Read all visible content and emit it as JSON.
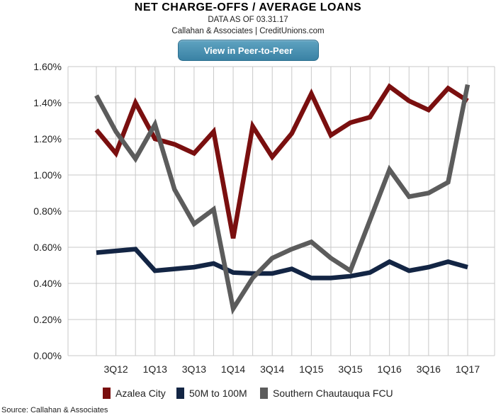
{
  "header": {
    "title": "NET CHARGE-OFFS / AVERAGE LOANS",
    "data_as_of": "DATA AS OF 03.31.17",
    "attribution": "Callahan & Associates | CreditUnions.com",
    "peer_button_label": "View in Peer-to-Peer"
  },
  "footer": {
    "source": "Source: Callahan & Associates"
  },
  "chart_data": {
    "type": "line",
    "title": "NET CHARGE-OFFS / AVERAGE LOANS",
    "xlabel": "",
    "ylabel": "",
    "ylim": [
      0,
      0.016
    ],
    "y_ticks": [
      "0.00%",
      "0.20%",
      "0.40%",
      "0.60%",
      "0.80%",
      "1.00%",
      "1.20%",
      "1.40%",
      "1.60%"
    ],
    "x_tick_labels": [
      "3Q12",
      "1Q13",
      "3Q13",
      "1Q14",
      "3Q14",
      "1Q15",
      "3Q15",
      "1Q16",
      "3Q16",
      "1Q17"
    ],
    "grid": true,
    "legend_placement": "bottom",
    "categories": [
      "2Q12",
      "3Q12",
      "4Q12",
      "1Q13",
      "2Q13",
      "3Q13",
      "4Q13",
      "1Q14",
      "2Q14",
      "3Q14",
      "4Q14",
      "1Q15",
      "2Q15",
      "3Q15",
      "4Q15",
      "1Q16",
      "2Q16",
      "3Q16",
      "4Q16",
      "1Q17"
    ],
    "series": [
      {
        "name": "Azalea City",
        "color": "#7a0f0f",
        "values": [
          0.0125,
          0.0112,
          0.014,
          0.012,
          0.0117,
          0.0112,
          0.0124,
          0.0065,
          0.0127,
          0.011,
          0.0123,
          0.0145,
          0.0122,
          0.0129,
          0.0132,
          0.0149,
          0.0141,
          0.0136,
          0.0148,
          0.0141
        ]
      },
      {
        "name": "50M to 100M",
        "color": "#132544",
        "values": [
          0.0057,
          0.0058,
          0.0059,
          0.0047,
          0.0048,
          0.0049,
          0.0051,
          0.0046,
          0.00455,
          0.00455,
          0.0048,
          0.0043,
          0.0043,
          0.0044,
          0.0046,
          0.0052,
          0.0047,
          0.0049,
          0.0052,
          0.0049
        ]
      },
      {
        "name": "Southern Chautauqua FCU",
        "color": "#5c5c5c",
        "values": [
          0.0144,
          0.0124,
          0.0109,
          0.0128,
          0.0092,
          0.0073,
          0.0081,
          0.0026,
          0.0043,
          0.0054,
          0.0059,
          0.0063,
          0.0054,
          0.0047,
          0.0075,
          0.0103,
          0.0088,
          0.009,
          0.0096,
          0.015
        ]
      }
    ]
  }
}
